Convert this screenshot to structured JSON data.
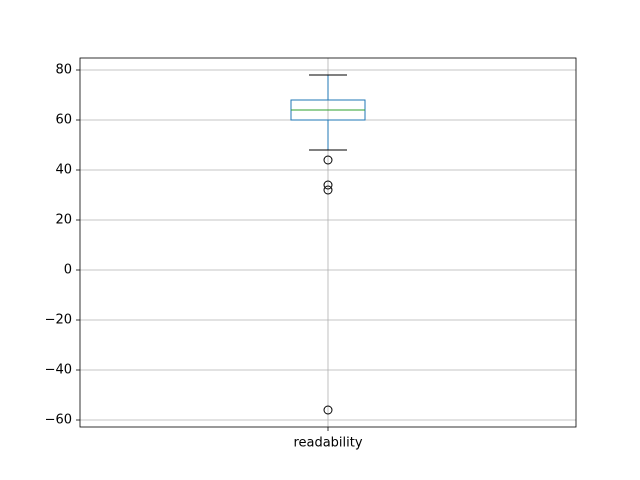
{
  "chart_data": {
    "type": "box",
    "categories": [
      "readability"
    ],
    "boxes": [
      {
        "whislo": 48,
        "q1": 60,
        "med": 64,
        "q3": 68,
        "whishi": 78,
        "fliers": [
          44,
          34,
          32,
          -56
        ]
      }
    ],
    "box_color": "#1f77b4",
    "median_color": "#2ca02c",
    "cap_color": "#000000",
    "flier_color": "#000000",
    "ylim": [
      -62.8,
      84.8
    ],
    "yticks": [
      {
        "value": -60,
        "label": "−60"
      },
      {
        "value": -40,
        "label": "−40"
      },
      {
        "value": -20,
        "label": "−20"
      },
      0,
      20,
      40,
      60,
      80
    ],
    "grid": true
  }
}
